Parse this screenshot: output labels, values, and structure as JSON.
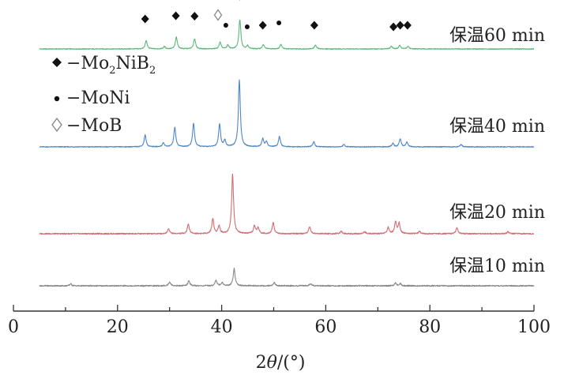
{
  "chart_data": {
    "type": "line",
    "xlabel": "2θ/(°)",
    "xlabel_parts": {
      "symbol": "2",
      "theta": "θ",
      "unit": "/(°)"
    },
    "xlim": [
      0,
      100
    ],
    "x_ticks": [
      0,
      20,
      40,
      60,
      80,
      100
    ],
    "grid": false,
    "legend": {
      "placement": "upper-left",
      "entries": [
        {
          "marker": "filled-diamond",
          "label": "Mo2NiB2",
          "prefix": "−Mo",
          "sub1": "2",
          "mid": "NiB",
          "sub2": "2"
        },
        {
          "marker": "filled-dot",
          "label": "MoNi",
          "text": "−MoNi"
        },
        {
          "marker": "open-diamond",
          "label": "MoB",
          "text": "−MoB"
        }
      ]
    },
    "series": [
      {
        "name": "保温60 min",
        "color": "#5cb87a",
        "x_range": [
          5,
          100
        ],
        "baseline": 0.4,
        "peaks": [
          [
            25.5,
            4.2
          ],
          [
            29.0,
            1.2
          ],
          [
            31.3,
            6.0
          ],
          [
            34.8,
            5.2
          ],
          [
            39.7,
            3.4
          ],
          [
            41.2,
            2.0
          ],
          [
            43.5,
            14.8
          ],
          [
            45.0,
            1.6
          ],
          [
            48.0,
            2.2
          ],
          [
            51.4,
            2.4
          ],
          [
            58.0,
            2.0
          ],
          [
            72.6,
            1.4
          ],
          [
            74.2,
            1.8
          ],
          [
            75.8,
            1.4
          ]
        ],
        "markers": [
          {
            "x": 25.3,
            "type": "filled-diamond",
            "h": 11.6
          },
          {
            "x": 31.2,
            "type": "filled-diamond",
            "h": 13.2
          },
          {
            "x": 34.8,
            "type": "filled-diamond",
            "h": 13.0
          },
          {
            "x": 39.3,
            "type": "open-diamond",
            "h": 13.6
          },
          {
            "x": 40.8,
            "type": "filled-dot",
            "h": 8.4
          },
          {
            "x": 43.5,
            "type": "filled-diamond",
            "h": 23.2
          },
          {
            "x": 44.9,
            "type": "filled-dot",
            "h": 7.6
          },
          {
            "x": 47.9,
            "type": "filled-diamond",
            "h": 8.4
          },
          {
            "x": 51.0,
            "type": "filled-dot",
            "h": 9.6
          },
          {
            "x": 57.8,
            "type": "filled-diamond",
            "h": 8.4
          },
          {
            "x": 73.0,
            "type": "filled-diamond",
            "h": 7.6
          },
          {
            "x": 74.3,
            "type": "filled-diamond",
            "h": 8.4
          },
          {
            "x": 75.7,
            "type": "filled-diamond",
            "h": 8.4
          }
        ]
      },
      {
        "name": "保温40 min",
        "color": "#4d86c8",
        "x_range": [
          5,
          100
        ],
        "baseline": 0.4,
        "peaks": [
          [
            25.3,
            6.0
          ],
          [
            28.8,
            2.0
          ],
          [
            31.0,
            10.0
          ],
          [
            34.6,
            12.0
          ],
          [
            39.6,
            11.6
          ],
          [
            40.6,
            3.2
          ],
          [
            43.4,
            34.0
          ],
          [
            47.9,
            4.0
          ],
          [
            48.6,
            2.6
          ],
          [
            51.1,
            5.2
          ],
          [
            57.7,
            2.6
          ],
          [
            63.5,
            1.2
          ],
          [
            72.9,
            1.8
          ],
          [
            74.3,
            4.0
          ],
          [
            75.6,
            2.4
          ],
          [
            86.0,
            1.2
          ]
        ]
      },
      {
        "name": "保温20 min",
        "color": "#d66b72",
        "x_range": [
          5,
          100
        ],
        "baseline": 0.6,
        "peaks": [
          [
            29.8,
            2.6
          ],
          [
            33.6,
            5.0
          ],
          [
            38.3,
            7.6
          ],
          [
            39.5,
            4.0
          ],
          [
            42.1,
            30.0
          ],
          [
            46.3,
            4.0
          ],
          [
            47.0,
            3.0
          ],
          [
            49.9,
            5.6
          ],
          [
            56.9,
            3.6
          ],
          [
            63.0,
            1.2
          ],
          [
            67.5,
            1.0
          ],
          [
            72.0,
            3.2
          ],
          [
            73.4,
            6.0
          ],
          [
            74.1,
            5.2
          ],
          [
            78.0,
            1.2
          ],
          [
            85.2,
            3.0
          ],
          [
            95.0,
            1.0
          ]
        ]
      },
      {
        "name": "保温10 min",
        "color": "#888888",
        "x_range": [
          5,
          100
        ],
        "baseline": 0.6,
        "peaks": [
          [
            11.0,
            1.0
          ],
          [
            30.0,
            2.0
          ],
          [
            33.7,
            2.6
          ],
          [
            38.9,
            2.8
          ],
          [
            40.1,
            1.6
          ],
          [
            42.4,
            8.8
          ],
          [
            50.1,
            1.6
          ],
          [
            57.1,
            1.2
          ],
          [
            73.4,
            1.4
          ],
          [
            74.3,
            1.2
          ]
        ]
      }
    ]
  }
}
